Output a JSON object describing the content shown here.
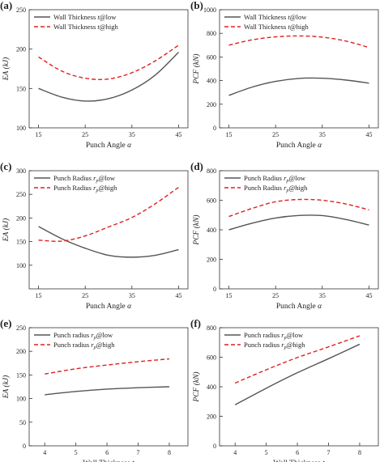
{
  "chart_data": [
    {
      "id": "a",
      "type": "line",
      "tag": "(a)",
      "xlabel": "Punch Angle",
      "xlabel_symbol": "α",
      "ylabel": "EA (kJ)",
      "xlim": [
        13,
        47
      ],
      "ylim": [
        100,
        250
      ],
      "xticks": [
        15,
        25,
        35,
        45
      ],
      "yticks": [
        100,
        150,
        200,
        250
      ],
      "legend_position": "top-left",
      "series": [
        {
          "name": "Wall Thickness",
          "name_sym": "t",
          "name_suffix": "@low",
          "style": "solid",
          "color": "#555555",
          "x": [
            15,
            20,
            25,
            30,
            35,
            40,
            45
          ],
          "y": [
            150,
            139,
            134,
            137,
            148,
            167,
            196
          ]
        },
        {
          "name": "Wall Thickness",
          "name_sym": "t",
          "name_suffix": "@high",
          "style": "dashed",
          "color": "#e02020",
          "x": [
            15,
            20,
            25,
            30,
            35,
            40,
            45
          ],
          "y": [
            190,
            172,
            163,
            162,
            170,
            185,
            205
          ]
        }
      ]
    },
    {
      "id": "b",
      "type": "line",
      "tag": "(b)",
      "xlabel": "Punch Angle",
      "xlabel_symbol": "α",
      "ylabel": "PCF (kN)",
      "xlim": [
        13,
        47
      ],
      "ylim": [
        0,
        1000
      ],
      "xticks": [
        15,
        25,
        35,
        45
      ],
      "yticks": [
        0,
        200,
        400,
        600,
        800,
        1000
      ],
      "legend_position": "top-left",
      "series": [
        {
          "name": "Wall Thickness",
          "name_sym": "t",
          "name_suffix": "@low",
          "style": "solid",
          "color": "#555555",
          "x": [
            15,
            20,
            25,
            30,
            35,
            40,
            45
          ],
          "y": [
            275,
            345,
            393,
            418,
            420,
            405,
            378
          ]
        },
        {
          "name": "Wall Thickness",
          "name_sym": "t",
          "name_suffix": "@high",
          "style": "dashed",
          "color": "#e02020",
          "x": [
            15,
            20,
            25,
            30,
            35,
            40,
            45
          ],
          "y": [
            700,
            745,
            770,
            778,
            768,
            735,
            680
          ]
        }
      ]
    },
    {
      "id": "c",
      "type": "line",
      "tag": "(c)",
      "xlabel": "Punch Angle",
      "xlabel_symbol": "α",
      "ylabel": "EA (kJ)",
      "xlim": [
        13,
        47
      ],
      "ylim": [
        50,
        300
      ],
      "xticks": [
        15,
        25,
        35,
        45
      ],
      "yticks": [
        100,
        150,
        200,
        250,
        300
      ],
      "legend_position": "top-left",
      "series": [
        {
          "name": "Punch Radius",
          "name_sym": "r",
          "name_sub": "p",
          "name_suffix": "@low",
          "style": "solid",
          "color": "#555555",
          "x": [
            15,
            20,
            25,
            30,
            35,
            40,
            45
          ],
          "y": [
            182,
            156,
            136,
            121,
            117,
            121,
            133
          ]
        },
        {
          "name": "Punch Radius",
          "name_sym": "r",
          "name_sub": "p",
          "name_suffix": "@high",
          "style": "dashed",
          "color": "#e02020",
          "x": [
            15,
            20,
            25,
            30,
            35,
            40,
            45
          ],
          "y": [
            153,
            151,
            162,
            181,
            201,
            230,
            265
          ]
        }
      ]
    },
    {
      "id": "d",
      "type": "line",
      "tag": "(d)",
      "xlabel": "Punch Angle",
      "xlabel_symbol": "α",
      "ylabel": "PCF (kN)",
      "xlim": [
        13,
        47
      ],
      "ylim": [
        0,
        800
      ],
      "xticks": [
        15,
        25,
        35,
        45
      ],
      "yticks": [
        0,
        200,
        400,
        600,
        800
      ],
      "legend_position": "top-left",
      "series": [
        {
          "name": "Punch Radius",
          "name_sym": "r",
          "name_sub": "p",
          "name_suffix": "@low",
          "style": "solid",
          "color": "#555555",
          "x": [
            15,
            20,
            25,
            30,
            35,
            40,
            45
          ],
          "y": [
            400,
            445,
            480,
            497,
            496,
            470,
            432
          ]
        },
        {
          "name": "Punch Radius",
          "name_sym": "r",
          "name_sub": "p",
          "name_suffix": "@high",
          "style": "dashed",
          "color": "#e02020",
          "x": [
            15,
            20,
            25,
            30,
            35,
            40,
            45
          ],
          "y": [
            490,
            545,
            590,
            605,
            600,
            575,
            535
          ]
        }
      ]
    },
    {
      "id": "e",
      "type": "line",
      "tag": "(e)",
      "xlabel": "Wall Thickness",
      "xlabel_symbol": "t",
      "ylabel": "EA (kJ)",
      "xlim": [
        3.5,
        8.6
      ],
      "ylim": [
        0,
        250
      ],
      "xticks": [
        4,
        5,
        6,
        7,
        8
      ],
      "yticks": [
        0,
        50,
        100,
        150,
        200,
        250
      ],
      "legend_position": "top-left",
      "series": [
        {
          "name": "Punch radius",
          "name_sym": "r",
          "name_sub": "p",
          "name_suffix": "@low",
          "style": "solid",
          "color": "#555555",
          "x": [
            4,
            5,
            6,
            7,
            8
          ],
          "y": [
            108,
            115,
            120,
            123,
            125
          ]
        },
        {
          "name": "Punch radius",
          "name_sym": "r",
          "name_sub": "p",
          "name_suffix": "@high",
          "style": "dashed",
          "color": "#e02020",
          "x": [
            4,
            5,
            6,
            7,
            8
          ],
          "y": [
            152,
            163,
            171,
            178,
            184
          ]
        }
      ]
    },
    {
      "id": "f",
      "type": "line",
      "tag": "(f)",
      "xlabel": "Wall Thickness",
      "xlabel_symbol": "t",
      "ylabel": "PCF (kN)",
      "xlim": [
        3.5,
        8.6
      ],
      "ylim": [
        0,
        800
      ],
      "xticks": [
        4,
        5,
        6,
        7,
        8
      ],
      "yticks": [
        0,
        200,
        400,
        600,
        800
      ],
      "legend_position": "top-left",
      "series": [
        {
          "name": "Punch radius",
          "name_sym": "r",
          "name_sub": "p",
          "name_suffix": "@low",
          "style": "solid",
          "color": "#555555",
          "x": [
            4,
            5,
            6,
            7,
            8
          ],
          "y": [
            278,
            390,
            495,
            590,
            688
          ]
        },
        {
          "name": "Punch radius",
          "name_sym": "r",
          "name_sub": "p",
          "name_suffix": "@high",
          "style": "dashed",
          "color": "#e02020",
          "x": [
            4,
            5,
            6,
            7,
            8
          ],
          "y": [
            425,
            515,
            598,
            670,
            745
          ]
        }
      ]
    }
  ]
}
